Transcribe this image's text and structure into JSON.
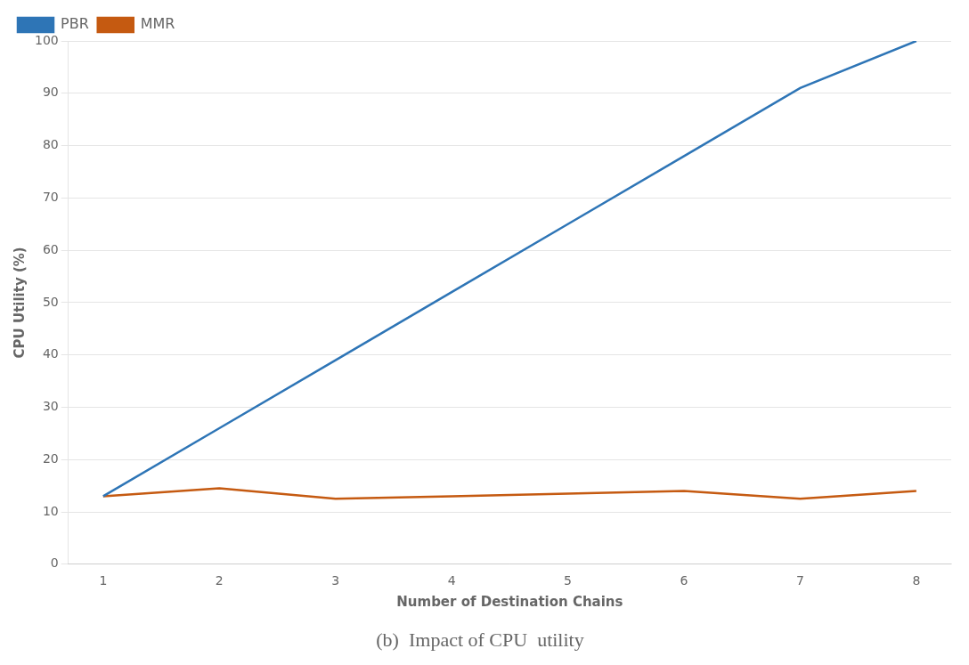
{
  "chart_data": {
    "type": "line",
    "x_label": "Number of Destination Chains",
    "y_label": "CPU Utility (%)",
    "caption": "(b)  Impact of CPU  utility",
    "x": [
      1,
      2,
      3,
      4,
      5,
      6,
      7,
      8
    ],
    "series": [
      {
        "name": "PBR",
        "color": "#2e75b6",
        "values": [
          13,
          26,
          39,
          52,
          65,
          78,
          91,
          100
        ]
      },
      {
        "name": "MMR",
        "color": "#c55a11",
        "values": [
          13,
          14.5,
          12.5,
          13,
          13.5,
          14,
          12.5,
          14
        ]
      }
    ],
    "xlim": [
      0.7,
      8.3
    ],
    "xticks": [
      1,
      2,
      3,
      4,
      5,
      6,
      7,
      8
    ],
    "ylim": [
      0,
      100
    ],
    "yticks": [
      0,
      10,
      20,
      30,
      40,
      50,
      60,
      70,
      80,
      90,
      100
    ],
    "grid": "y",
    "legend": "upper left"
  }
}
